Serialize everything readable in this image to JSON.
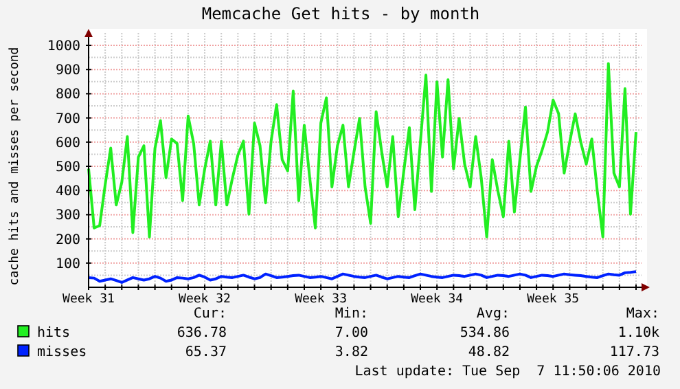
{
  "chart_data": {
    "type": "line",
    "title": "Memcache Get hits - by month",
    "ylabel": "cache hits and misses per second",
    "categories": [
      "Week 31",
      null,
      null,
      null,
      null,
      null,
      null,
      null,
      null,
      null,
      null,
      null,
      null,
      null,
      null,
      null,
      null,
      null,
      null,
      null,
      null,
      "Week 32",
      null,
      null,
      null,
      null,
      null,
      null,
      null,
      null,
      null,
      null,
      null,
      null,
      null,
      null,
      null,
      null,
      null,
      null,
      null,
      null,
      "Week 33",
      null,
      null,
      null,
      null,
      null,
      null,
      null,
      null,
      null,
      null,
      null,
      null,
      null,
      null,
      null,
      null,
      null,
      null,
      null,
      null,
      "Week 34",
      null,
      null,
      null,
      null,
      null,
      null,
      null,
      null,
      null,
      null,
      null,
      null,
      null,
      null,
      null,
      null,
      null,
      null,
      null,
      null,
      "Week 35",
      null,
      null,
      null,
      null,
      null,
      null,
      null,
      null,
      null,
      null,
      null,
      null,
      null,
      null,
      null
    ],
    "ylim": [
      0,
      1000
    ],
    "yticks": [
      {
        "value": 0,
        "label": null
      },
      {
        "value": 50,
        "label": null
      },
      100,
      {
        "value": 150,
        "label": null
      },
      200,
      {
        "value": 250,
        "label": null
      },
      300,
      {
        "value": 350,
        "label": null
      },
      400,
      {
        "value": 450,
        "label": null
      },
      500,
      {
        "value": 550,
        "label": null
      },
      600,
      {
        "value": 650,
        "label": null
      },
      700,
      {
        "value": 750,
        "label": null
      },
      800,
      {
        "value": 850,
        "label": null
      },
      900,
      {
        "value": 950,
        "label": null
      },
      1000
    ],
    "grid": true,
    "legend": "bottom",
    "marker": "none",
    "line_style": "solid",
    "series": [
      {
        "name": "hits",
        "color": "#22ee22",
        "values": [
          490,
          245,
          255,
          425,
          575,
          340,
          434,
          623,
          226,
          538,
          585,
          208,
          575,
          689,
          453,
          613,
          594,
          358,
          708,
          594,
          340,
          490,
          604,
          340,
          604,
          340,
          450,
          547,
          604,
          302,
          679,
          585,
          349,
          604,
          755,
          528,
          481,
          811,
          358,
          670,
          450,
          245,
          679,
          783,
          415,
          585,
          670,
          415,
          560,
          698,
          415,
          264,
          726,
          560,
          415,
          623,
          292,
          480,
          660,
          321,
          600,
          877,
          396,
          849,
          538,
          858,
          490,
          698,
          509,
          415,
          623,
          453,
          208,
          528,
          400,
          292,
          604,
          311,
          530,
          745,
          396,
          500,
          566,
          642,
          774,
          717,
          472,
          600,
          717,
          600,
          509,
          613,
          396,
          208,
          925,
          472,
          415,
          821,
          302,
          642
        ]
      },
      {
        "name": "misses",
        "color": "#0022ff",
        "values": [
          40,
          38,
          25,
          30,
          35,
          28,
          20,
          30,
          40,
          35,
          30,
          35,
          45,
          38,
          25,
          30,
          40,
          38,
          35,
          40,
          50,
          42,
          30,
          35,
          45,
          42,
          40,
          45,
          50,
          42,
          35,
          40,
          55,
          48,
          40,
          42,
          45,
          48,
          50,
          45,
          40,
          42,
          45,
          40,
          35,
          45,
          55,
          50,
          45,
          42,
          40,
          45,
          50,
          42,
          35,
          40,
          45,
          42,
          40,
          48,
          55,
          50,
          45,
          42,
          40,
          45,
          50,
          48,
          45,
          50,
          55,
          50,
          40,
          45,
          50,
          48,
          45,
          50,
          55,
          50,
          40,
          45,
          50,
          48,
          45,
          50,
          55,
          52,
          50,
          48,
          45,
          42,
          40,
          48,
          55,
          52,
          50,
          60,
          62,
          65
        ]
      }
    ],
    "annotations": [
      "Cur:",
      "Min:",
      "Avg:",
      "Max:",
      "636.78",
      "7.00",
      "534.86",
      "1.10k",
      "65.37",
      "3.82",
      "48.82",
      "117.73",
      "Last update: Tue Sep  7 11:50:06 2010"
    ]
  }
}
